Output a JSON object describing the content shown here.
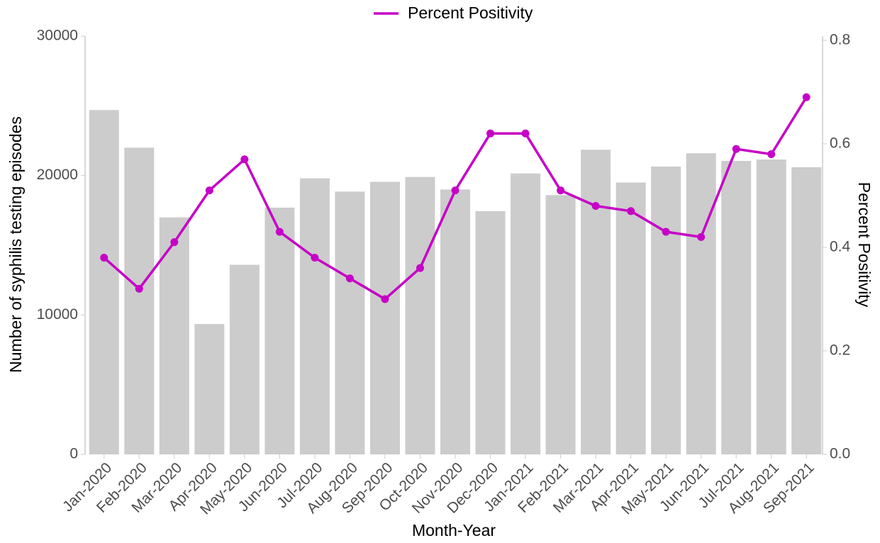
{
  "chart_data": {
    "type": "bar_line",
    "legend_position": "top",
    "xlabel": "Month-Year",
    "ylabel": "Number of syphilis testing episodes",
    "y2label": "Percent Positivity",
    "categories": [
      "Jan-2020",
      "Feb-2020",
      "Mar-2020",
      "Apr-2020",
      "May-2020",
      "Jun-2020",
      "Jul-2020",
      "Aug-2020",
      "Sep-2020",
      "Oct-2020",
      "Nov-2020",
      "Dec-2020",
      "Jan-2021",
      "Feb-2021",
      "Mar-2021",
      "Apr-2021",
      "May-2021",
      "Jun-2021",
      "Jul-2021",
      "Aug-2021",
      "Sep-2021"
    ],
    "series": [
      {
        "type": "bar",
        "color": "#cccccc",
        "values": [
          24700,
          22000,
          17000,
          9350,
          13600,
          17700,
          19800,
          18850,
          19550,
          19900,
          19000,
          17450,
          20150,
          18600,
          21850,
          19500,
          20650,
          21600,
          21050,
          21150,
          20600
        ]
      },
      {
        "type": "line",
        "name": "Percent Positivity",
        "color": "#c600c6",
        "axis": "y2",
        "values": [
          0.38,
          0.32,
          0.41,
          0.51,
          0.57,
          0.43,
          0.38,
          0.34,
          0.3,
          0.36,
          0.51,
          0.62,
          0.62,
          0.51,
          0.48,
          0.47,
          0.43,
          0.42,
          0.59,
          0.58,
          0.69
        ]
      }
    ],
    "ylim": [
      0,
      30000
    ],
    "yticks": [
      0,
      10000,
      20000,
      30000
    ],
    "y2lim": [
      0,
      0.808
    ],
    "y2ticks": [
      {
        "value": 0,
        "label": "0.0"
      },
      0.2,
      0.4,
      0.6,
      0.8
    ]
  }
}
